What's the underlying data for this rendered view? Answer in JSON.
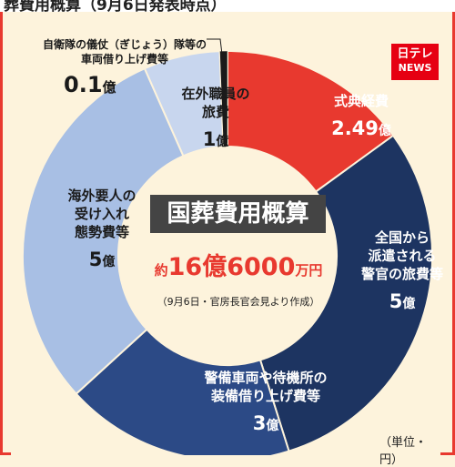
{
  "header_fragment": "葬費用概算（9月6日発表時点）",
  "logo": {
    "line1": "日テレ",
    "line2": "NEWS",
    "color": "#e60012"
  },
  "callout": {
    "label_line1": "自衛隊の儀仗（ぎじょう）隊等の",
    "label_line2": "車両借り上げ費等",
    "value": "0.1",
    "unit": "億"
  },
  "center": {
    "title": "国葬費用概算",
    "total_prefix": "約",
    "total_a": "16億",
    "total_b": "6000",
    "total_unit": "万円",
    "note": "（9月6日・官房長官会見より作成）"
  },
  "unit_note": "（単位・円）",
  "colors": {
    "accent": "#e8392f",
    "navy": "#1d3461",
    "mid_navy": "#2c4a86",
    "light_blue": "#a8bfe4",
    "pale_blue": "#c8d6ee",
    "cream": "#fdf3dc"
  },
  "chart_data": {
    "type": "pie",
    "style": "donut",
    "unit": "億円",
    "total": 16.6,
    "slices": [
      {
        "label": "式典経費",
        "value": 2.49,
        "value_text": "2.49",
        "color": "#e8392f",
        "text_color": "#ffffff"
      },
      {
        "label": "全国から派遣される警官の旅費等",
        "value": 5,
        "value_text": "5",
        "color": "#1d3461",
        "text_color": "#ffffff"
      },
      {
        "label": "警備車両や待機所の装備借り上げ費等",
        "value": 3,
        "value_text": "3",
        "color": "#2c4a86",
        "text_color": "#ffffff"
      },
      {
        "label": "海外要人の受け入れ態勢費等",
        "value": 5,
        "value_text": "5",
        "color": "#a8bfe4",
        "text_color": "#1a1a1a"
      },
      {
        "label": "在外職員の旅費",
        "value": 1,
        "value_text": "1",
        "color": "#c8d6ee",
        "text_color": "#1a1a1a"
      },
      {
        "label": "自衛隊の儀仗（ぎじょう）隊等の車両借り上げ費等",
        "value": 0.1,
        "value_text": "0.1",
        "color": "#1a1a1a",
        "text_color": "#1a1a1a"
      }
    ],
    "value_suffix": "億",
    "labels_lines": [
      [
        "式典経費"
      ],
      [
        "全国から",
        "派遣される",
        "警官の旅費等"
      ],
      [
        "警備車両や待機所の",
        "装備借り上げ費等"
      ],
      [
        "海外要人の",
        "受け入れ",
        "態勢費等"
      ],
      [
        "在外職員の",
        "旅費"
      ],
      []
    ]
  }
}
